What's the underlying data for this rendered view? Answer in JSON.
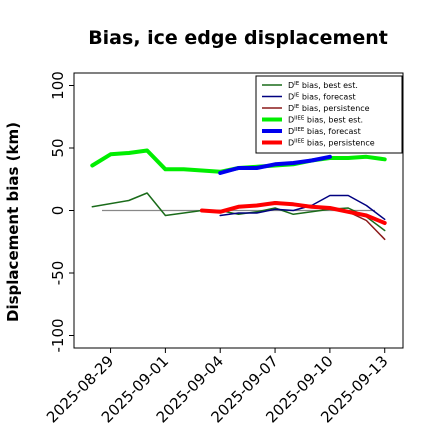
{
  "chart_data": {
    "type": "line",
    "title": "Bias, ice edge displacement",
    "xlabel": "",
    "ylabel": "Displacement bias (km)",
    "ylim": [
      -110,
      110
    ],
    "yticks": [
      -100,
      -50,
      0,
      50,
      100
    ],
    "xlim": [
      "2025-08-27",
      "2025-09-14"
    ],
    "xticks": [
      {
        "date": "2025-08-29",
        "label": "2025-08-29",
        "color": "#000000"
      },
      {
        "date": "2025-09-01",
        "label": "2025-09-01",
        "color": "#000000"
      },
      {
        "date": "2025-09-04",
        "label": "2025-09-04",
        "color": "#228b22"
      },
      {
        "date": "2025-09-07",
        "label": "2025-09-07",
        "color": "#000000"
      },
      {
        "date": "2025-09-10",
        "label": "2025-09-10",
        "color": "#000000"
      },
      {
        "date": "2025-09-13",
        "label": "2025-09-13",
        "color": "#000000"
      }
    ],
    "zero_line": true,
    "legend_position": "top-right",
    "series": [
      {
        "name": "D^IE bias, best est.",
        "color": "#1a6b1a",
        "width": 1.5,
        "x": [
          "2025-08-28",
          "2025-08-30",
          "2025-08-31",
          "2025-09-01",
          "2025-09-02",
          "2025-09-03",
          "2025-09-04",
          "2025-09-05",
          "2025-09-06",
          "2025-09-07",
          "2025-09-08",
          "2025-09-09",
          "2025-09-10",
          "2025-09-11",
          "2025-09-12",
          "2025-09-13"
        ],
        "y": [
          3,
          8,
          14,
          -4,
          -2,
          0,
          0,
          -3,
          -1,
          2,
          -3,
          -1,
          1,
          2,
          -5,
          -16
        ]
      },
      {
        "name": "D^IE bias, forecast",
        "color": "#000080",
        "width": 1.5,
        "x": [
          "2025-09-04",
          "2025-09-05",
          "2025-09-06",
          "2025-09-07",
          "2025-09-08",
          "2025-09-09",
          "2025-09-10",
          "2025-09-11",
          "2025-09-12",
          "2025-09-13"
        ],
        "y": [
          -4,
          -2,
          -2,
          1,
          0,
          4,
          12,
          12,
          4,
          -7
        ]
      },
      {
        "name": "D^IE bias, persistence",
        "color": "#8b1a1a",
        "width": 1.5,
        "x": [
          "2025-09-03",
          "2025-09-04",
          "2025-09-05",
          "2025-09-06",
          "2025-09-07",
          "2025-09-08",
          "2025-09-09",
          "2025-09-10",
          "2025-09-11",
          "2025-09-12",
          "2025-09-13"
        ],
        "y": [
          0,
          -1,
          3,
          4,
          7,
          5,
          4,
          2,
          -1,
          -8,
          -23
        ]
      },
      {
        "name": "D^IIEE bias, best est.",
        "color": "#00ee00",
        "width": 4,
        "x": [
          "2025-08-28",
          "2025-08-29",
          "2025-08-30",
          "2025-08-31",
          "2025-09-01",
          "2025-09-02",
          "2025-09-03",
          "2025-09-04",
          "2025-09-05",
          "2025-09-06",
          "2025-09-07",
          "2025-09-08",
          "2025-09-09",
          "2025-09-10",
          "2025-09-11",
          "2025-09-12",
          "2025-09-13"
        ],
        "y": [
          36,
          45,
          46,
          48,
          33,
          33,
          32,
          31,
          34,
          35,
          36,
          37,
          40,
          42,
          42,
          43,
          41
        ]
      },
      {
        "name": "D^IIEE bias, forecast",
        "color": "#0000ee",
        "width": 4,
        "x": [
          "2025-09-04",
          "2025-09-05",
          "2025-09-06",
          "2025-09-07",
          "2025-09-08",
          "2025-09-09",
          "2025-09-10"
        ],
        "y": [
          30,
          34,
          34,
          37,
          38,
          40,
          43
        ]
      },
      {
        "name": "D^IIEE bias, persistence",
        "color": "#ff0000",
        "width": 4,
        "x": [
          "2025-09-03",
          "2025-09-04",
          "2025-09-05",
          "2025-09-06",
          "2025-09-07",
          "2025-09-08",
          "2025-09-09",
          "2025-09-10",
          "2025-09-11",
          "2025-09-12",
          "2025-09-13"
        ],
        "y": [
          0,
          -1,
          3,
          4,
          6,
          5,
          3,
          2,
          -1,
          -4,
          -10
        ]
      }
    ],
    "legend_labels": [
      {
        "base": "D",
        "sup": "IE",
        "rest": " bias, best est."
      },
      {
        "base": "D",
        "sup": "IE",
        "rest": " bias, forecast"
      },
      {
        "base": "D",
        "sup": "IE",
        "rest": " bias, persistence"
      },
      {
        "base": "D",
        "sup": "IIEE",
        "rest": " bias, best est."
      },
      {
        "base": "D",
        "sup": "IIEE",
        "rest": " bias, forecast"
      },
      {
        "base": "D",
        "sup": "IIEE",
        "rest": " bias, persistence"
      }
    ]
  }
}
